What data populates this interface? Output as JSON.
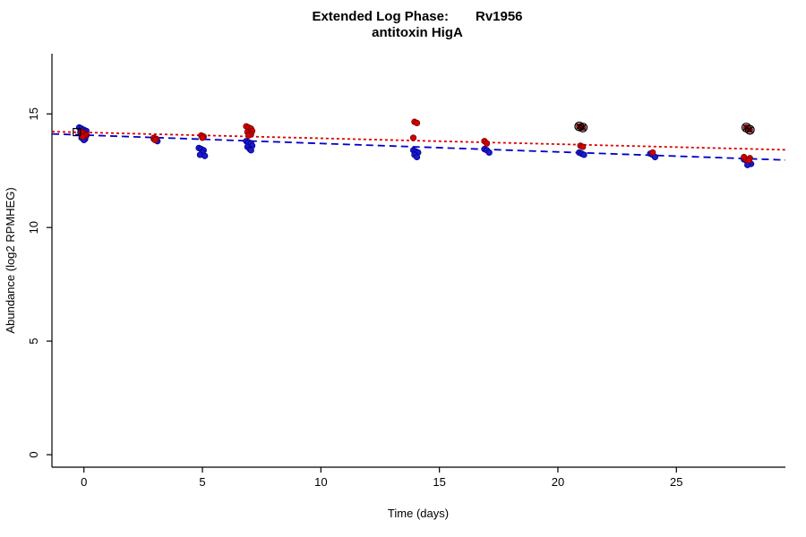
{
  "figure": {
    "title_prefix": "Extended Log Phase:",
    "title_gene": "Rv1956",
    "subtitle": "antitoxin HigA"
  },
  "chart_data": {
    "type": "scatter",
    "title": "Extended Log Phase: Rv1956 — antitoxin HigA",
    "xlabel": "Time  (days)",
    "ylabel": "Abundance  (log2 RPMHEG)",
    "xlim": [
      -1.35,
      29.6
    ],
    "ylim": [
      -0.55,
      17.65
    ],
    "x_ticks": [
      0,
      5,
      10,
      15,
      20,
      25
    ],
    "y_ticks": [
      0,
      5,
      10,
      15
    ],
    "grid": false,
    "legend": "none",
    "colors": {
      "red": "#d40000",
      "red_edge": "#7a0000",
      "blue": "#1a1acf",
      "blue_edge": "#00008b",
      "flag": "#000000"
    },
    "series": [
      {
        "name": "blue-points",
        "marker": "circle",
        "color": "#1a1acf",
        "edge": "#00008b",
        "points": [
          [
            -0.2,
            14.4
          ],
          [
            -0.1,
            14.35
          ],
          [
            0,
            14.3
          ],
          [
            0.1,
            14.25
          ],
          [
            -0.15,
            14.2
          ],
          [
            0.05,
            14.15
          ],
          [
            -0.05,
            14.1
          ],
          [
            0.1,
            14.05
          ],
          [
            0,
            14.0
          ],
          [
            -0.1,
            13.95
          ],
          [
            0.05,
            13.9
          ],
          [
            0,
            13.85
          ],
          [
            2.95,
            13.9
          ],
          [
            3.05,
            13.85
          ],
          [
            3.1,
            13.8
          ],
          [
            4.85,
            13.5
          ],
          [
            4.95,
            13.45
          ],
          [
            5.05,
            13.4
          ],
          [
            5.0,
            13.3
          ],
          [
            4.9,
            13.2
          ],
          [
            5.1,
            13.15
          ],
          [
            6.85,
            13.8
          ],
          [
            6.95,
            13.75
          ],
          [
            7.05,
            13.7
          ],
          [
            7.1,
            13.6
          ],
          [
            6.9,
            13.55
          ],
          [
            7.0,
            13.45
          ],
          [
            7.05,
            13.4
          ],
          [
            13.9,
            13.4
          ],
          [
            14.0,
            13.35
          ],
          [
            14.1,
            13.3
          ],
          [
            13.95,
            13.2
          ],
          [
            14.05,
            13.1
          ],
          [
            16.9,
            13.45
          ],
          [
            17.0,
            13.4
          ],
          [
            17.1,
            13.3
          ],
          [
            20.9,
            13.3
          ],
          [
            21.0,
            13.25
          ],
          [
            21.1,
            13.2
          ],
          [
            23.9,
            13.25
          ],
          [
            24.0,
            13.2
          ],
          [
            24.1,
            13.1
          ],
          [
            27.85,
            13.0
          ],
          [
            27.95,
            12.95
          ],
          [
            28.05,
            12.9
          ],
          [
            28.15,
            12.8
          ],
          [
            28.0,
            12.75
          ]
        ]
      },
      {
        "name": "red-points",
        "marker": "circle",
        "color": "#d40000",
        "edge": "#7a0000",
        "points": [
          [
            -0.1,
            14.2
          ],
          [
            0,
            14.15
          ],
          [
            0.1,
            14.1
          ],
          [
            0.05,
            14.05
          ],
          [
            -0.05,
            14.0
          ],
          [
            2.95,
            13.95
          ],
          [
            3.05,
            13.9
          ],
          [
            3.0,
            13.85
          ],
          [
            4.95,
            14.05
          ],
          [
            5.05,
            14.0
          ],
          [
            5.0,
            13.95
          ],
          [
            6.85,
            14.45
          ],
          [
            6.95,
            14.4
          ],
          [
            7.05,
            14.35
          ],
          [
            7.1,
            14.25
          ],
          [
            6.9,
            14.2
          ],
          [
            7.0,
            14.15
          ],
          [
            7.05,
            14.1
          ],
          [
            6.95,
            14.05
          ],
          [
            13.95,
            14.65
          ],
          [
            14.05,
            14.6
          ],
          [
            13.9,
            13.95
          ],
          [
            16.9,
            13.8
          ],
          [
            17.0,
            13.7
          ],
          [
            20.95,
            13.6
          ],
          [
            21.05,
            13.55
          ],
          [
            24.0,
            13.3
          ],
          [
            20.9,
            14.45
          ],
          [
            21.05,
            14.4
          ],
          [
            27.95,
            14.4
          ],
          [
            28.1,
            14.3
          ],
          [
            27.85,
            13.1
          ],
          [
            27.95,
            13.0
          ],
          [
            28.1,
            13.05
          ],
          [
            28.05,
            12.95
          ]
        ]
      },
      {
        "name": "flagged-points",
        "marker": "circle-x",
        "color": "#000000",
        "points": [
          [
            20.9,
            14.45
          ],
          [
            21.05,
            14.4
          ],
          [
            27.95,
            14.4
          ],
          [
            28.1,
            14.3
          ]
        ]
      },
      {
        "name": "reference-square",
        "marker": "square-open",
        "color": "#000000",
        "points": [
          [
            -0.3,
            14.2
          ]
        ]
      }
    ],
    "trend_lines": [
      {
        "name": "red-trend",
        "color": "#dd0000",
        "dash": "3 3",
        "x1": -1.35,
        "y1": 14.22,
        "x2": 29.6,
        "y2": 13.42
      },
      {
        "name": "blue-trend",
        "color": "#0000cc",
        "dash": "8 5",
        "x1": -1.35,
        "y1": 14.12,
        "x2": 29.6,
        "y2": 12.97
      }
    ]
  }
}
